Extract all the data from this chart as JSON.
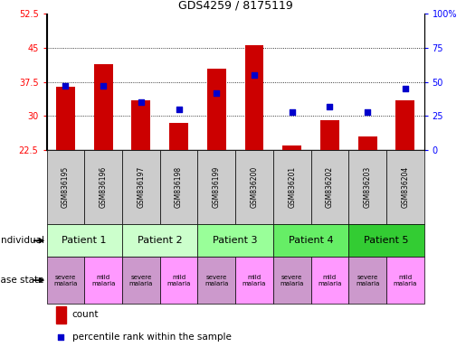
{
  "title": "GDS4259 / 8175119",
  "samples": [
    "GSM836195",
    "GSM836196",
    "GSM836197",
    "GSM836198",
    "GSM836199",
    "GSM836200",
    "GSM836201",
    "GSM836202",
    "GSM836203",
    "GSM836204"
  ],
  "count_values": [
    36.5,
    41.5,
    33.5,
    28.5,
    40.5,
    45.5,
    23.5,
    29.0,
    25.5,
    33.5
  ],
  "percentile_values": [
    47,
    47,
    35,
    30,
    42,
    55,
    28,
    32,
    28,
    45
  ],
  "ylim_left": [
    22.5,
    52.5
  ],
  "ylim_right": [
    0,
    100
  ],
  "yticks_left": [
    22.5,
    30,
    37.5,
    45,
    52.5
  ],
  "ytick_labels_left": [
    "22.5",
    "30",
    "37.5",
    "45",
    "52.5"
  ],
  "yticks_right": [
    0,
    25,
    50,
    75,
    100
  ],
  "ytick_labels_right": [
    "0",
    "25",
    "50",
    "75",
    "100%"
  ],
  "bar_color": "#cc0000",
  "square_color": "#0000cc",
  "bar_bottom": 22.5,
  "patients": [
    {
      "label": "Patient 1",
      "cols": [
        0,
        1
      ],
      "color": "#ccffcc"
    },
    {
      "label": "Patient 2",
      "cols": [
        2,
        3
      ],
      "color": "#ccffcc"
    },
    {
      "label": "Patient 3",
      "cols": [
        4,
        5
      ],
      "color": "#99ff99"
    },
    {
      "label": "Patient 4",
      "cols": [
        6,
        7
      ],
      "color": "#66dd66"
    },
    {
      "label": "Patient 5",
      "cols": [
        8,
        9
      ],
      "color": "#33cc33"
    }
  ],
  "disease_states": [
    {
      "label": "severe\nmalaria",
      "col": 0,
      "color": "#cc99cc"
    },
    {
      "label": "mild\nmalaria",
      "col": 1,
      "color": "#ff99ff"
    },
    {
      "label": "severe\nmalaria",
      "col": 2,
      "color": "#cc99cc"
    },
    {
      "label": "mild\nmalaria",
      "col": 3,
      "color": "#ff99ff"
    },
    {
      "label": "severe\nmalaria",
      "col": 4,
      "color": "#cc99cc"
    },
    {
      "label": "mild\nmalaria",
      "col": 5,
      "color": "#ff99ff"
    },
    {
      "label": "severe\nmalaria",
      "col": 6,
      "color": "#cc99cc"
    },
    {
      "label": "mild\nmalaria",
      "col": 7,
      "color": "#ff99ff"
    },
    {
      "label": "severe\nmalaria",
      "col": 8,
      "color": "#cc99cc"
    },
    {
      "label": "mild\nmalaria",
      "col": 9,
      "color": "#ff99ff"
    }
  ],
  "background_color": "#ffffff",
  "sample_row_color": "#cccccc",
  "grid_dotted_at": [
    30,
    37.5,
    45
  ]
}
